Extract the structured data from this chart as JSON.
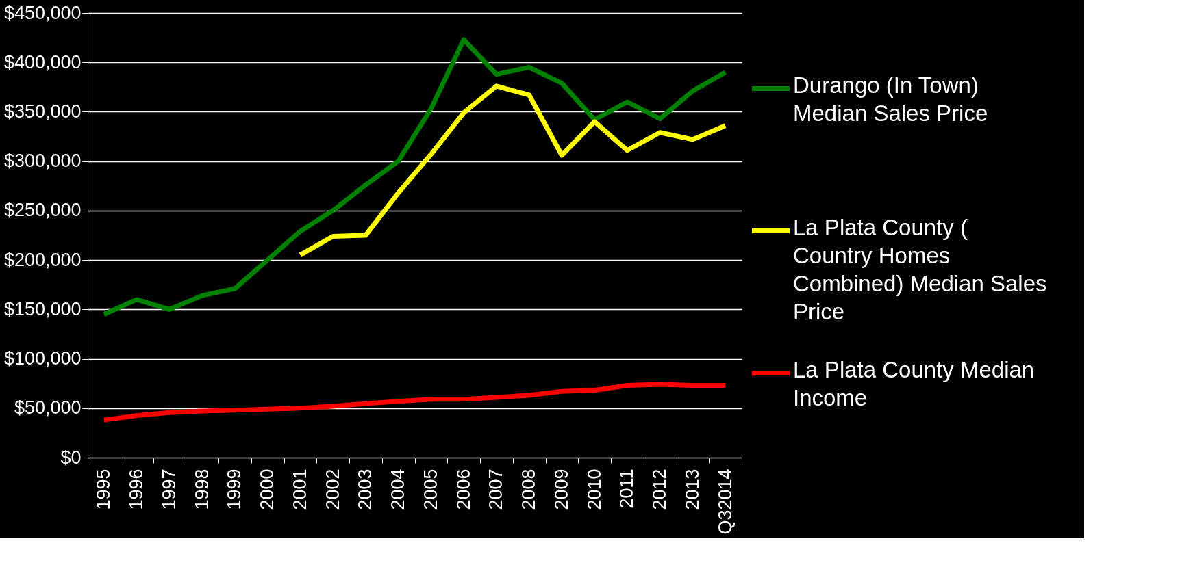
{
  "chart_data": {
    "type": "line",
    "categories": [
      "1995",
      "1996",
      "1997",
      "1998",
      "1999",
      "2000",
      "2001",
      "2002",
      "2003",
      "2004",
      "2005",
      "2006",
      "2007",
      "2008",
      "2009",
      "2010",
      "2011",
      "2012",
      "2013",
      "Q32014"
    ],
    "ylim": [
      0,
      450000
    ],
    "yticks": [
      {
        "value": 0,
        "label": "$0"
      },
      {
        "value": 50000,
        "label": "$50,000"
      },
      {
        "value": 100000,
        "label": "$100,000"
      },
      {
        "value": 150000,
        "label": "$150,000"
      },
      {
        "value": 200000,
        "label": "$200,000"
      },
      {
        "value": 250000,
        "label": "$250,000"
      },
      {
        "value": 300000,
        "label": "$300,000"
      },
      {
        "value": 350000,
        "label": "$350,000"
      },
      {
        "value": 400000,
        "label": "$400,000"
      },
      {
        "value": 450000,
        "label": "$450,000"
      }
    ],
    "grid": "y",
    "legend": "right",
    "marker": "none",
    "line_style": "solid",
    "series": [
      {
        "name": "Durango (In Town) Median Sales Price",
        "color": "#008000",
        "values": [
          145000,
          160000,
          150000,
          164000,
          171000,
          200000,
          229000,
          250000,
          276000,
          300000,
          353000,
          423000,
          388000,
          395000,
          379000,
          342000,
          360000,
          343000,
          371000,
          390000
        ]
      },
      {
        "name": "La Plata County ( Country Homes Combined) Median Sales Price",
        "color": "#ffff00",
        "values": [
          null,
          null,
          null,
          null,
          null,
          null,
          205000,
          224000,
          225000,
          268000,
          307000,
          349000,
          376000,
          367000,
          306000,
          340000,
          311000,
          329000,
          322000,
          336000
        ]
      },
      {
        "name": "La Plata County Median Income",
        "color": "#ff0000",
        "values": [
          38000,
          42500,
          45500,
          47000,
          48000,
          49000,
          50000,
          52000,
          54600,
          57000,
          59000,
          59000,
          61000,
          63000,
          67000,
          68000,
          73000,
          74000,
          73000,
          73000
        ]
      }
    ]
  }
}
